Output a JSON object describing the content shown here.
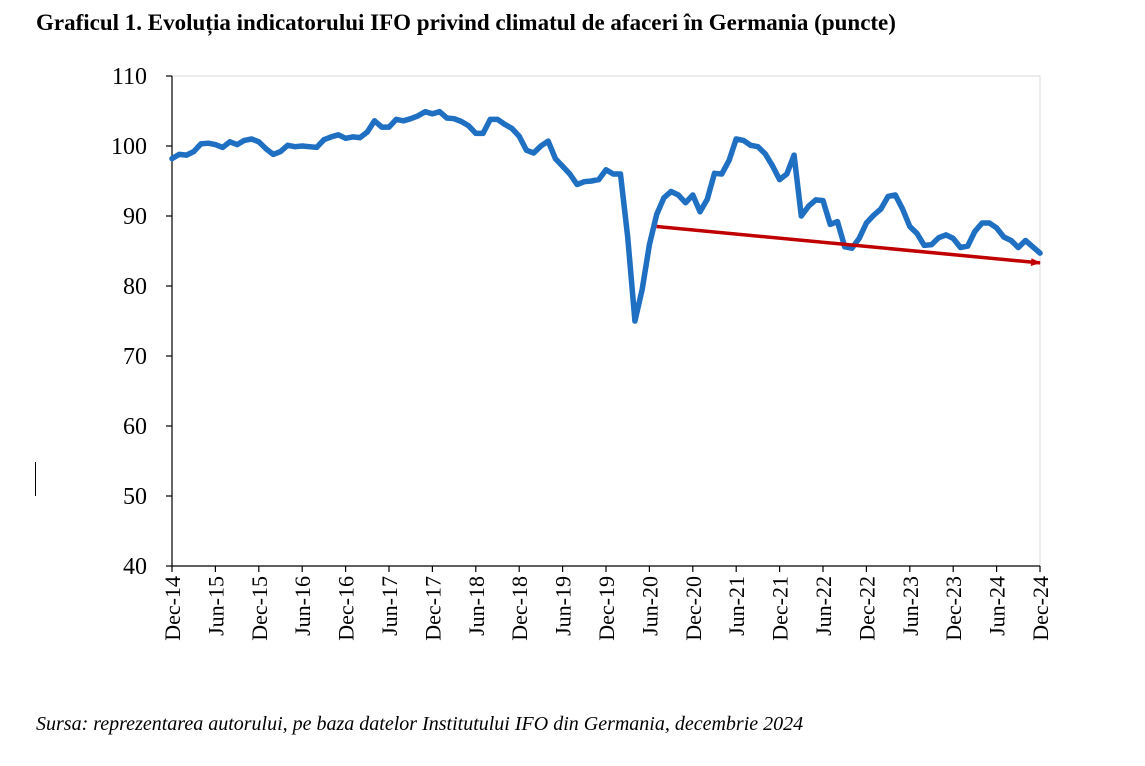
{
  "title": "Graficul 1. Evoluția indicatorului IFO privind climatul de afaceri în Germania (puncte)",
  "source": "Sursa: reprezentarea autorului, pe baza datelor Institutului IFO din Germania, decembrie 2024",
  "colors": {
    "series": "#1f6fc2",
    "trend_arrow": "#c00000",
    "axis": "#000000"
  },
  "chart_data": {
    "type": "line",
    "ylim": [
      40,
      110
    ],
    "yticks": [
      40,
      50,
      60,
      70,
      80,
      90,
      100,
      110
    ],
    "grid": false,
    "x_tick_labels": [
      "Dec-14",
      "Jun-15",
      "Dec-15",
      "Jun-16",
      "Dec-16",
      "Jun-17",
      "Dec-17",
      "Jun-18",
      "Dec-18",
      "Jun-19",
      "Dec-19",
      "Jun-20",
      "Dec-20",
      "Jun-21",
      "Dec-21",
      "Jun-22",
      "Dec-22",
      "Jun-23",
      "Dec-23",
      "Jun-24",
      "Dec-24"
    ],
    "x_start": "Dec-14",
    "x_end": "Dec-24",
    "series": [
      {
        "values": [
          98.2,
          98.8,
          98.7,
          99.2,
          100.3,
          100.4,
          100.2,
          99.8,
          100.6,
          100.2,
          100.8,
          101.0,
          100.6,
          99.6,
          98.8,
          99.2,
          100.1,
          99.9,
          100.0,
          99.9,
          99.8,
          100.9,
          101.3,
          101.6,
          101.1,
          101.3,
          101.2,
          102.0,
          103.6,
          102.7,
          102.7,
          103.8,
          103.6,
          103.9,
          104.3,
          104.9,
          104.6,
          104.9,
          104.0,
          103.9,
          103.5,
          102.9,
          101.8,
          101.8,
          103.8,
          103.8,
          103.1,
          102.5,
          101.4,
          99.4,
          99.0,
          100.0,
          100.7,
          98.2,
          97.1,
          96.0,
          94.5,
          94.9,
          95.0,
          95.2,
          96.6,
          96.0,
          96.0,
          87.0,
          75.0,
          79.5,
          85.9,
          90.2,
          92.6,
          93.5,
          93.0,
          91.9,
          93.0,
          90.6,
          92.4,
          96.1,
          96.0,
          97.9,
          101.0,
          100.8,
          100.1,
          99.9,
          98.9,
          97.2,
          95.2,
          96.0,
          98.7,
          90.0,
          91.4,
          92.3,
          92.2,
          88.8,
          89.2,
          85.6,
          85.4,
          86.8,
          89.0,
          90.1,
          91.0,
          92.8,
          93.0,
          91.0,
          88.5,
          87.5,
          85.8,
          85.9,
          86.9,
          87.3,
          86.8,
          85.5,
          85.7,
          87.8,
          89.0,
          89.0,
          88.3,
          87.0,
          86.5,
          85.5,
          86.5,
          85.6,
          84.7
        ]
      }
    ],
    "annotations": [
      {
        "type": "arrow",
        "description": "trend",
        "from": {
          "x": "Jul-20",
          "y": 88.5
        },
        "to": {
          "x": "Dec-24",
          "y": 83.3
        }
      }
    ]
  }
}
